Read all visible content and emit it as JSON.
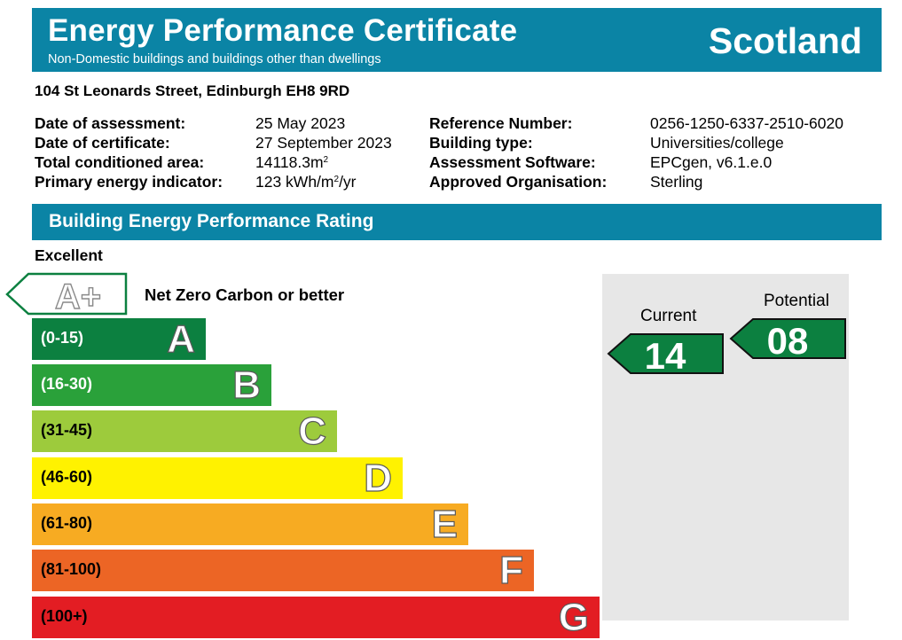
{
  "header": {
    "title": "Energy Performance Certificate",
    "subtitle": "Non-Domestic buildings and buildings other than dwellings",
    "region": "Scotland"
  },
  "address": "104 St Leonards Street, Edinburgh EH8 9RD",
  "details_left": [
    {
      "label": "Date of assessment:",
      "value": "25 May 2023"
    },
    {
      "label": "Date of certificate:",
      "value": "27 September 2023"
    },
    {
      "label": "Total conditioned area:",
      "value": "14118.3m",
      "sup": "2"
    },
    {
      "label": "Primary energy indicator:",
      "value": "123 kWh/m",
      "sup": "2",
      "suffix": "/yr"
    }
  ],
  "details_right": [
    {
      "label": "Reference Number:",
      "value": "0256-1250-6337-2510-6020"
    },
    {
      "label": "Building type:",
      "value": "Universities/college"
    },
    {
      "label": "Assessment Software:",
      "value": "EPCgen, v6.1.e.0"
    },
    {
      "label": "Approved Organisation:",
      "value": "Sterling"
    }
  ],
  "rating_section": {
    "title": "Building Energy Performance Rating",
    "excellent_label": "Excellent",
    "aplus_label": "A+",
    "aplus_text": "Net Zero Carbon or better",
    "bands": [
      {
        "range": "(0-15)",
        "letter": "A",
        "color": "#0c8040",
        "range_color": "#ffffff"
      },
      {
        "range": "(16-30)",
        "letter": "B",
        "color": "#2aa13a",
        "range_color": "#ffffff"
      },
      {
        "range": "(31-45)",
        "letter": "C",
        "color": "#9dcb3c",
        "range_color": "#000000"
      },
      {
        "range": "(46-60)",
        "letter": "D",
        "color": "#fff200",
        "range_color": "#000000"
      },
      {
        "range": "(61-80)",
        "letter": "E",
        "color": "#f7ab22",
        "range_color": "#000000"
      },
      {
        "range": "(81-100)",
        "letter": "F",
        "color": "#ec6525",
        "range_color": "#000000"
      },
      {
        "range": "(100+)",
        "letter": "G",
        "color": "#e31d23",
        "range_color": "#000000"
      }
    ],
    "current_label": "Current",
    "current_value": "14",
    "potential_label": "Potential",
    "potential_value": "08",
    "arrow_color": "#0c8040"
  }
}
